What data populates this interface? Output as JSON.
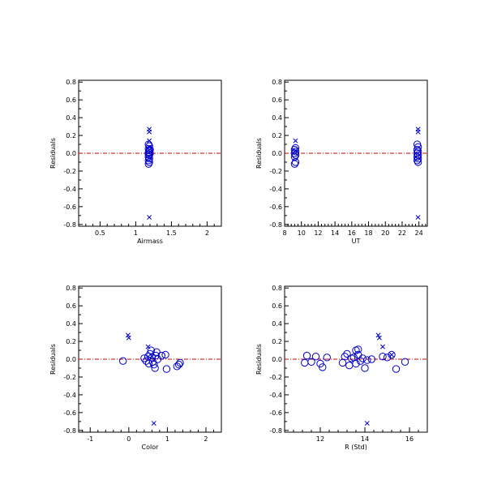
{
  "chart_data": [
    {
      "type": "scatter",
      "xlabel": "Airmass",
      "ylabel": "Residuals",
      "xlim": [
        0.2,
        2.2
      ],
      "ylim": [
        -0.82,
        0.82
      ],
      "xticks": [
        0.5,
        1.0,
        1.5,
        2.0
      ],
      "xtick_labels": [
        "0.5",
        "1",
        "1.5",
        "2"
      ],
      "yticks": [
        -0.8,
        -0.6,
        -0.4,
        -0.2,
        0.0,
        0.2,
        0.4,
        0.6,
        0.8
      ],
      "ytick_labels": [
        "-0.8",
        "-0.6",
        "-0.4",
        "-0.2",
        "0.0",
        "0.2",
        "0.4",
        "0.6",
        "0.8"
      ],
      "reference_line": 0.0,
      "circles": [
        {
          "x": 1.18,
          "y": 0.05
        },
        {
          "x": 1.19,
          "y": 0.03
        },
        {
          "x": 1.18,
          "y": 0.01
        },
        {
          "x": 1.2,
          "y": 0.0
        },
        {
          "x": 1.19,
          "y": -0.02
        },
        {
          "x": 1.18,
          "y": -0.04
        },
        {
          "x": 1.19,
          "y": -0.06
        },
        {
          "x": 1.18,
          "y": -0.08
        },
        {
          "x": 1.19,
          "y": -0.1
        },
        {
          "x": 1.18,
          "y": -0.12
        },
        {
          "x": 1.19,
          "y": 0.08
        },
        {
          "x": 1.18,
          "y": 0.1
        },
        {
          "x": 1.2,
          "y": 0.04
        },
        {
          "x": 1.18,
          "y": -0.01
        }
      ],
      "crosses": [
        {
          "x": 1.19,
          "y": 0.27
        },
        {
          "x": 1.19,
          "y": 0.24
        },
        {
          "x": 1.19,
          "y": 0.14
        },
        {
          "x": 1.19,
          "y": 0.07
        },
        {
          "x": 1.19,
          "y": -0.72
        }
      ]
    },
    {
      "type": "scatter",
      "xlabel": "UT",
      "ylabel": "Residuals",
      "xlim": [
        8,
        25
      ],
      "ylim": [
        -0.82,
        0.82
      ],
      "xticks": [
        8,
        10,
        12,
        14,
        16,
        18,
        20,
        22,
        24
      ],
      "xtick_labels": [
        "8",
        "10",
        "12",
        "14",
        "16",
        "18",
        "20",
        "22",
        "24"
      ],
      "yticks": [
        -0.8,
        -0.6,
        -0.4,
        -0.2,
        0.0,
        0.2,
        0.4,
        0.6,
        0.8
      ],
      "ytick_labels": [
        "-0.8",
        "-0.6",
        "-0.4",
        "-0.2",
        "0.0",
        "0.2",
        "0.4",
        "0.6",
        "0.8"
      ],
      "reference_line": 0.0,
      "circles": [
        {
          "x": 9.2,
          "y": 0.04
        },
        {
          "x": 9.3,
          "y": 0.02
        },
        {
          "x": 9.2,
          "y": 0.0
        },
        {
          "x": 9.3,
          "y": -0.02
        },
        {
          "x": 9.2,
          "y": -0.04
        },
        {
          "x": 9.3,
          "y": -0.1
        },
        {
          "x": 9.2,
          "y": -0.12
        },
        {
          "x": 9.3,
          "y": 0.06
        },
        {
          "x": 23.8,
          "y": 0.1
        },
        {
          "x": 23.9,
          "y": 0.07
        },
        {
          "x": 23.8,
          "y": 0.04
        },
        {
          "x": 23.9,
          "y": 0.02
        },
        {
          "x": 23.8,
          "y": 0.0
        },
        {
          "x": 23.9,
          "y": -0.02
        },
        {
          "x": 23.8,
          "y": -0.04
        },
        {
          "x": 23.9,
          "y": -0.06
        },
        {
          "x": 23.8,
          "y": -0.08
        },
        {
          "x": 23.9,
          "y": -0.1
        }
      ],
      "crosses": [
        {
          "x": 9.3,
          "y": 0.14
        },
        {
          "x": 9.3,
          "y": 0.03
        },
        {
          "x": 23.9,
          "y": 0.27
        },
        {
          "x": 23.9,
          "y": 0.24
        },
        {
          "x": 23.9,
          "y": -0.72
        }
      ]
    },
    {
      "type": "scatter",
      "xlabel": "Color",
      "ylabel": "Residuals",
      "xlim": [
        -1.3,
        2.4
      ],
      "ylim": [
        -0.82,
        0.82
      ],
      "xticks": [
        -1,
        0,
        1,
        2
      ],
      "xtick_labels": [
        "-1",
        "0",
        "1",
        "2"
      ],
      "yticks": [
        -0.8,
        -0.6,
        -0.4,
        -0.2,
        0.0,
        0.2,
        0.4,
        0.6,
        0.8
      ],
      "ytick_labels": [
        "-0.8",
        "-0.6",
        "-0.4",
        "-0.2",
        "0.0",
        "0.2",
        "0.4",
        "0.6",
        "0.8"
      ],
      "reference_line": 0.0,
      "circles": [
        {
          "x": -0.15,
          "y": -0.02
        },
        {
          "x": 0.4,
          "y": 0.01
        },
        {
          "x": 0.45,
          "y": -0.02
        },
        {
          "x": 0.5,
          "y": 0.03
        },
        {
          "x": 0.55,
          "y": 0.06
        },
        {
          "x": 0.58,
          "y": 0.1
        },
        {
          "x": 0.6,
          "y": 0.02
        },
        {
          "x": 0.62,
          "y": -0.03
        },
        {
          "x": 0.65,
          "y": -0.06
        },
        {
          "x": 0.68,
          "y": -0.1
        },
        {
          "x": 0.7,
          "y": 0.04
        },
        {
          "x": 0.75,
          "y": 0.0
        },
        {
          "x": 0.85,
          "y": 0.04
        },
        {
          "x": 0.95,
          "y": 0.05
        },
        {
          "x": 0.98,
          "y": -0.11
        },
        {
          "x": 1.25,
          "y": -0.08
        },
        {
          "x": 1.3,
          "y": -0.06
        },
        {
          "x": 1.33,
          "y": -0.04
        },
        {
          "x": 0.52,
          "y": -0.05
        },
        {
          "x": 0.72,
          "y": 0.08
        }
      ],
      "crosses": [
        {
          "x": -0.02,
          "y": 0.27
        },
        {
          "x": 0.0,
          "y": 0.24
        },
        {
          "x": 0.5,
          "y": 0.14
        },
        {
          "x": 0.6,
          "y": 0.03
        },
        {
          "x": 0.65,
          "y": -0.72
        }
      ]
    },
    {
      "type": "scatter",
      "xlabel": "R (Std)",
      "ylabel": "Residuals",
      "xlim": [
        10.4,
        16.8
      ],
      "ylim": [
        -0.82,
        0.82
      ],
      "xticks": [
        12,
        14,
        16
      ],
      "xtick_labels": [
        "12",
        "14",
        "16"
      ],
      "yticks": [
        -0.8,
        -0.6,
        -0.4,
        -0.2,
        0.0,
        0.2,
        0.4,
        0.6,
        0.8
      ],
      "ytick_labels": [
        "-0.8",
        "-0.6",
        "-0.4",
        "-0.2",
        "0.0",
        "0.2",
        "0.4",
        "0.6",
        "0.8"
      ],
      "reference_line": 0.0,
      "circles": [
        {
          "x": 11.3,
          "y": -0.04
        },
        {
          "x": 11.4,
          "y": 0.04
        },
        {
          "x": 11.6,
          "y": -0.03
        },
        {
          "x": 11.8,
          "y": 0.03
        },
        {
          "x": 12.0,
          "y": -0.05
        },
        {
          "x": 12.1,
          "y": -0.09
        },
        {
          "x": 12.3,
          "y": 0.02
        },
        {
          "x": 13.0,
          "y": -0.04
        },
        {
          "x": 13.1,
          "y": 0.03
        },
        {
          "x": 13.2,
          "y": 0.06
        },
        {
          "x": 13.3,
          "y": -0.07
        },
        {
          "x": 13.4,
          "y": 0.01
        },
        {
          "x": 13.5,
          "y": 0.02
        },
        {
          "x": 13.6,
          "y": -0.05
        },
        {
          "x": 13.6,
          "y": 0.1
        },
        {
          "x": 13.7,
          "y": 0.05
        },
        {
          "x": 13.8,
          "y": -0.02
        },
        {
          "x": 13.9,
          "y": 0.01
        },
        {
          "x": 14.0,
          "y": -0.1
        },
        {
          "x": 14.1,
          "y": -0.01
        },
        {
          "x": 14.3,
          "y": 0.0
        },
        {
          "x": 14.8,
          "y": 0.03
        },
        {
          "x": 15.0,
          "y": 0.02
        },
        {
          "x": 15.2,
          "y": 0.05
        },
        {
          "x": 15.4,
          "y": -0.11
        },
        {
          "x": 15.8,
          "y": -0.03
        },
        {
          "x": 13.7,
          "y": 0.11
        }
      ],
      "crosses": [
        {
          "x": 14.6,
          "y": 0.27
        },
        {
          "x": 14.65,
          "y": 0.24
        },
        {
          "x": 14.8,
          "y": 0.14
        },
        {
          "x": 15.2,
          "y": 0.05
        },
        {
          "x": 14.1,
          "y": -0.72
        }
      ]
    }
  ],
  "colors": {
    "marker": "#0000cc",
    "reference_line": "#cc0000",
    "axes": "#000000"
  }
}
